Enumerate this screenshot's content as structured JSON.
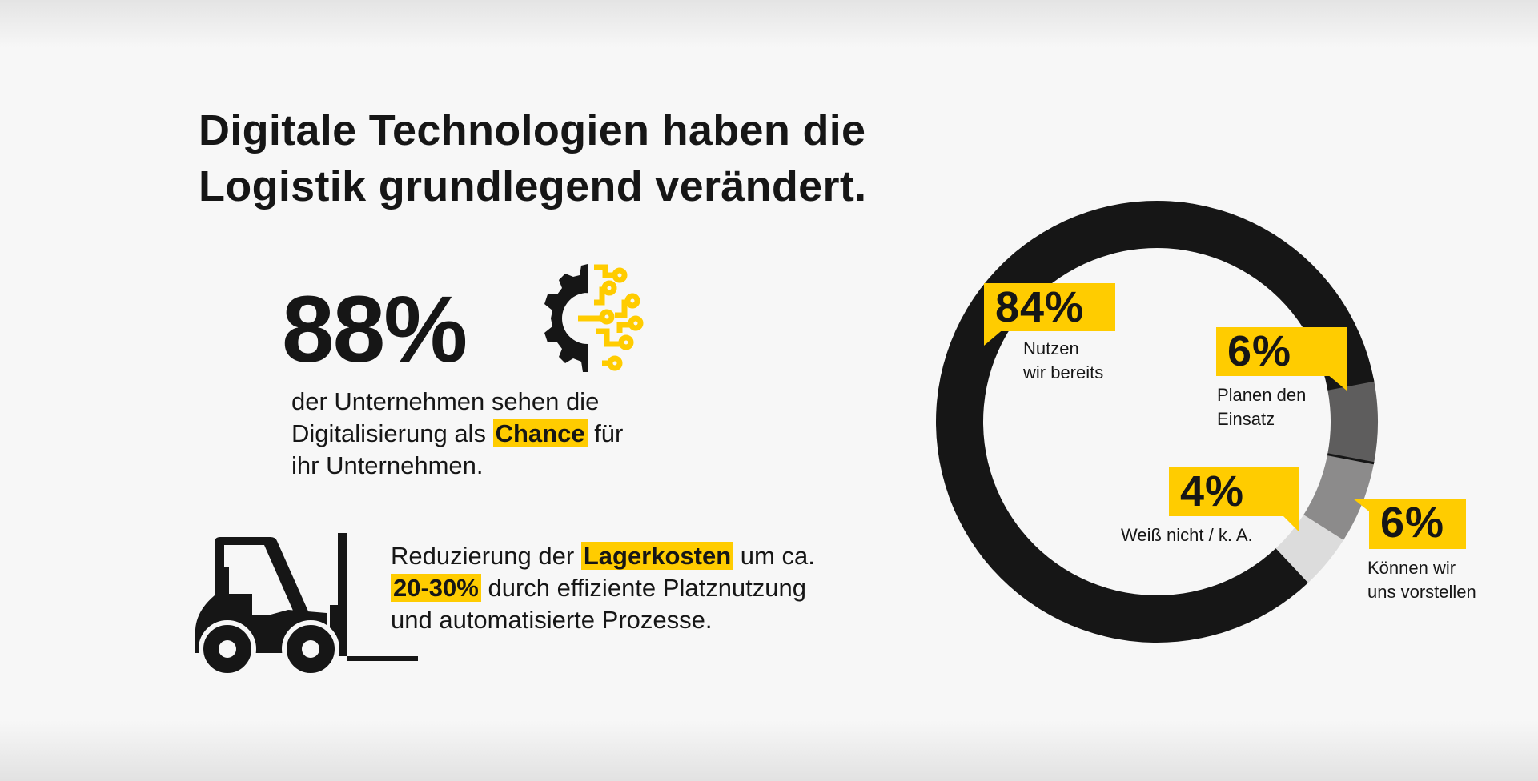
{
  "title_lines": [
    "Digitale Technologien haben die",
    "Logistik grundlegend verändert."
  ],
  "stat1": {
    "value": "88%",
    "icon": "gear-circuit-icon",
    "line1": "der Unternehmen sehen die",
    "line2_pre": "Digitalisierung als",
    "line2_highlight": "Chance",
    "line2_post": "für",
    "line3": "ihr Unternehmen."
  },
  "stat2": {
    "icon": "forklift-icon",
    "line1_pre": "Reduzierung der",
    "line1_highlight": "Lagerkosten",
    "line1_post": "um ca.",
    "line2_highlight": "20-30%",
    "line2_post": "durch effiziente Platznutzung",
    "line3": "und automatisierte Prozesse."
  },
  "colors": {
    "accent": "#ffcc00",
    "text": "#161616",
    "background": "#f7f7f7"
  },
  "chart_data": {
    "type": "pie",
    "variant": "donut",
    "categories": [
      "Nutzen wir bereits",
      "Planen den Einsatz",
      "Können wir uns vorstellen",
      "Weiß nicht / k. A."
    ],
    "values": [
      84,
      6,
      6,
      4
    ],
    "value_labels": [
      "84%",
      "6%",
      "6%",
      "4%"
    ],
    "label_lines": [
      [
        "Nutzen",
        "wir bereits"
      ],
      [
        "Planen den",
        "Einsatz"
      ],
      [
        "Können wir",
        "uns vorstellen"
      ],
      [
        "Weiß nicht / k. A."
      ]
    ],
    "colors": [
      "#161616",
      "#5e5d5d",
      "#8c8b8b",
      "#dcdcdc"
    ]
  }
}
